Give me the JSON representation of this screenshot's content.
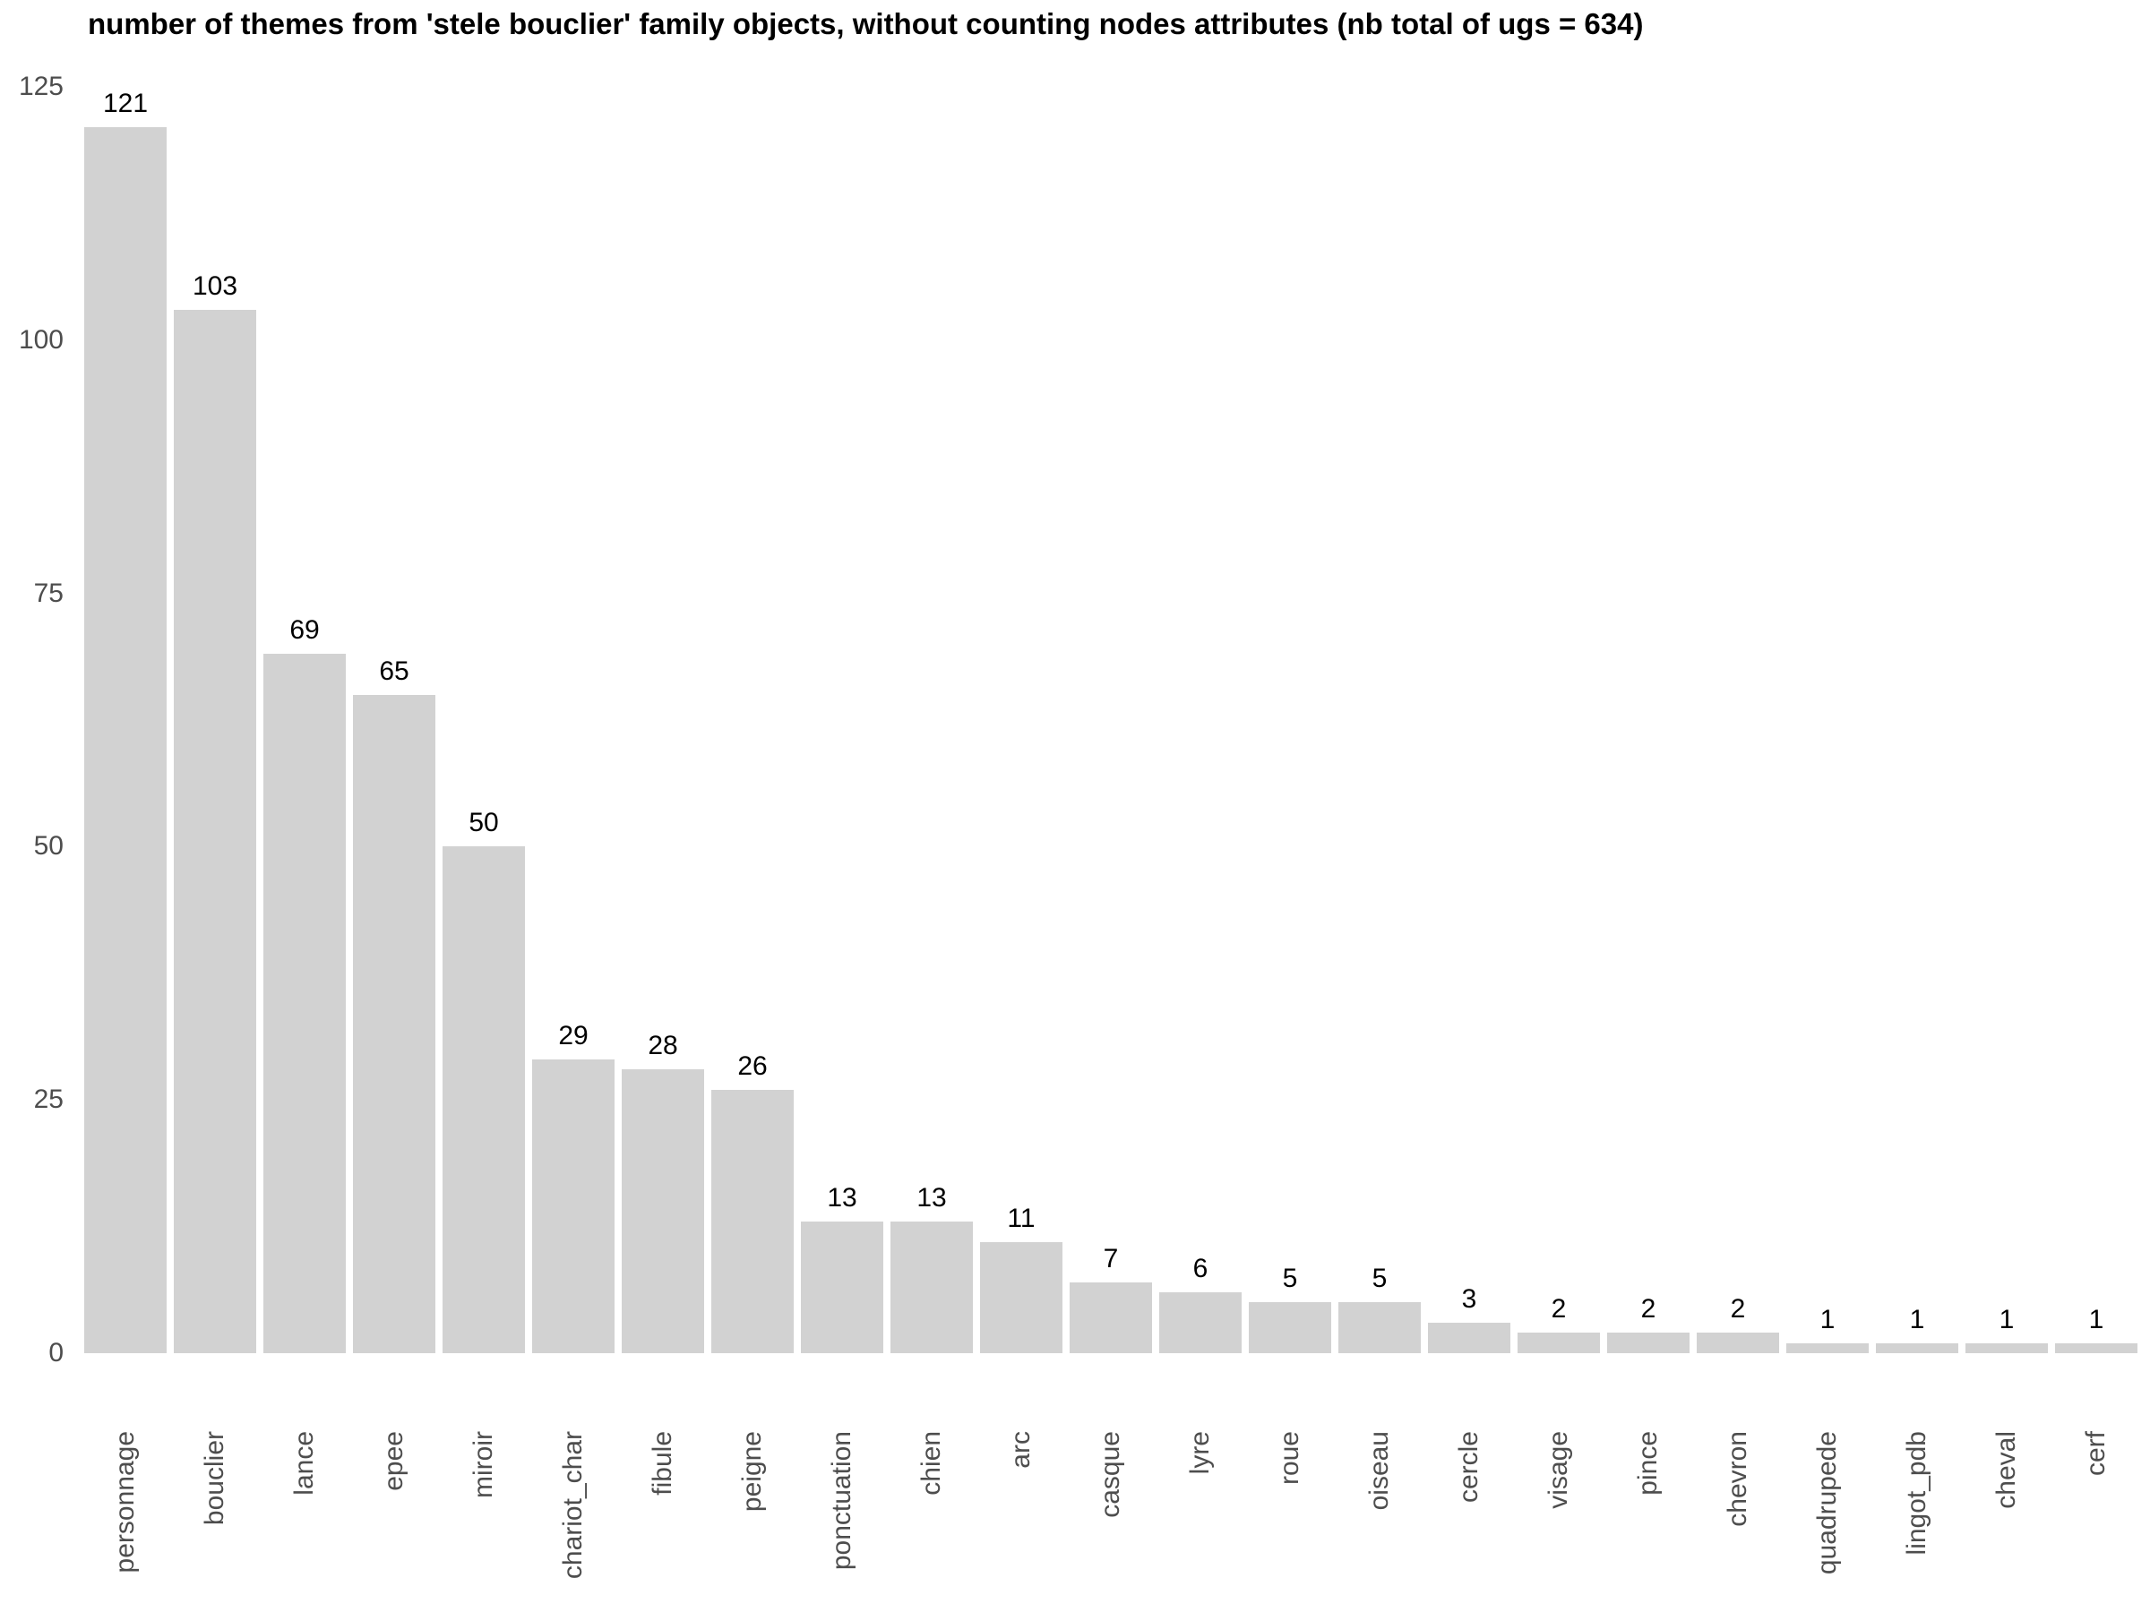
{
  "chart_data": {
    "type": "bar",
    "title": "number of themes from 'stele bouclier' family objects, without counting nodes attributes (nb total of ugs = 634)",
    "xlabel": "",
    "ylabel": "",
    "categories": [
      "personnage",
      "bouclier",
      "lance",
      "epee",
      "miroir",
      "chariot_char",
      "fibule",
      "peigne",
      "ponctuation",
      "chien",
      "arc",
      "casque",
      "lyre",
      "roue",
      "oiseau",
      "cercle",
      "visage",
      "pince",
      "chevron",
      "quadrupede",
      "lingot_pdb",
      "cheval",
      "cerf"
    ],
    "values": [
      121,
      103,
      69,
      65,
      50,
      29,
      28,
      26,
      13,
      13,
      11,
      7,
      6,
      5,
      5,
      3,
      2,
      2,
      2,
      1,
      1,
      1,
      1
    ],
    "y_ticks": [
      0,
      25,
      50,
      75,
      100,
      125
    ],
    "ylim": [
      0,
      125
    ],
    "grid": false,
    "legend": "none",
    "value_labels_shown": true,
    "bar_color": "#d2d2d2",
    "axis_text_color": "#4d4d4d",
    "title_color": "#000000",
    "value_label_color": "#000000"
  }
}
